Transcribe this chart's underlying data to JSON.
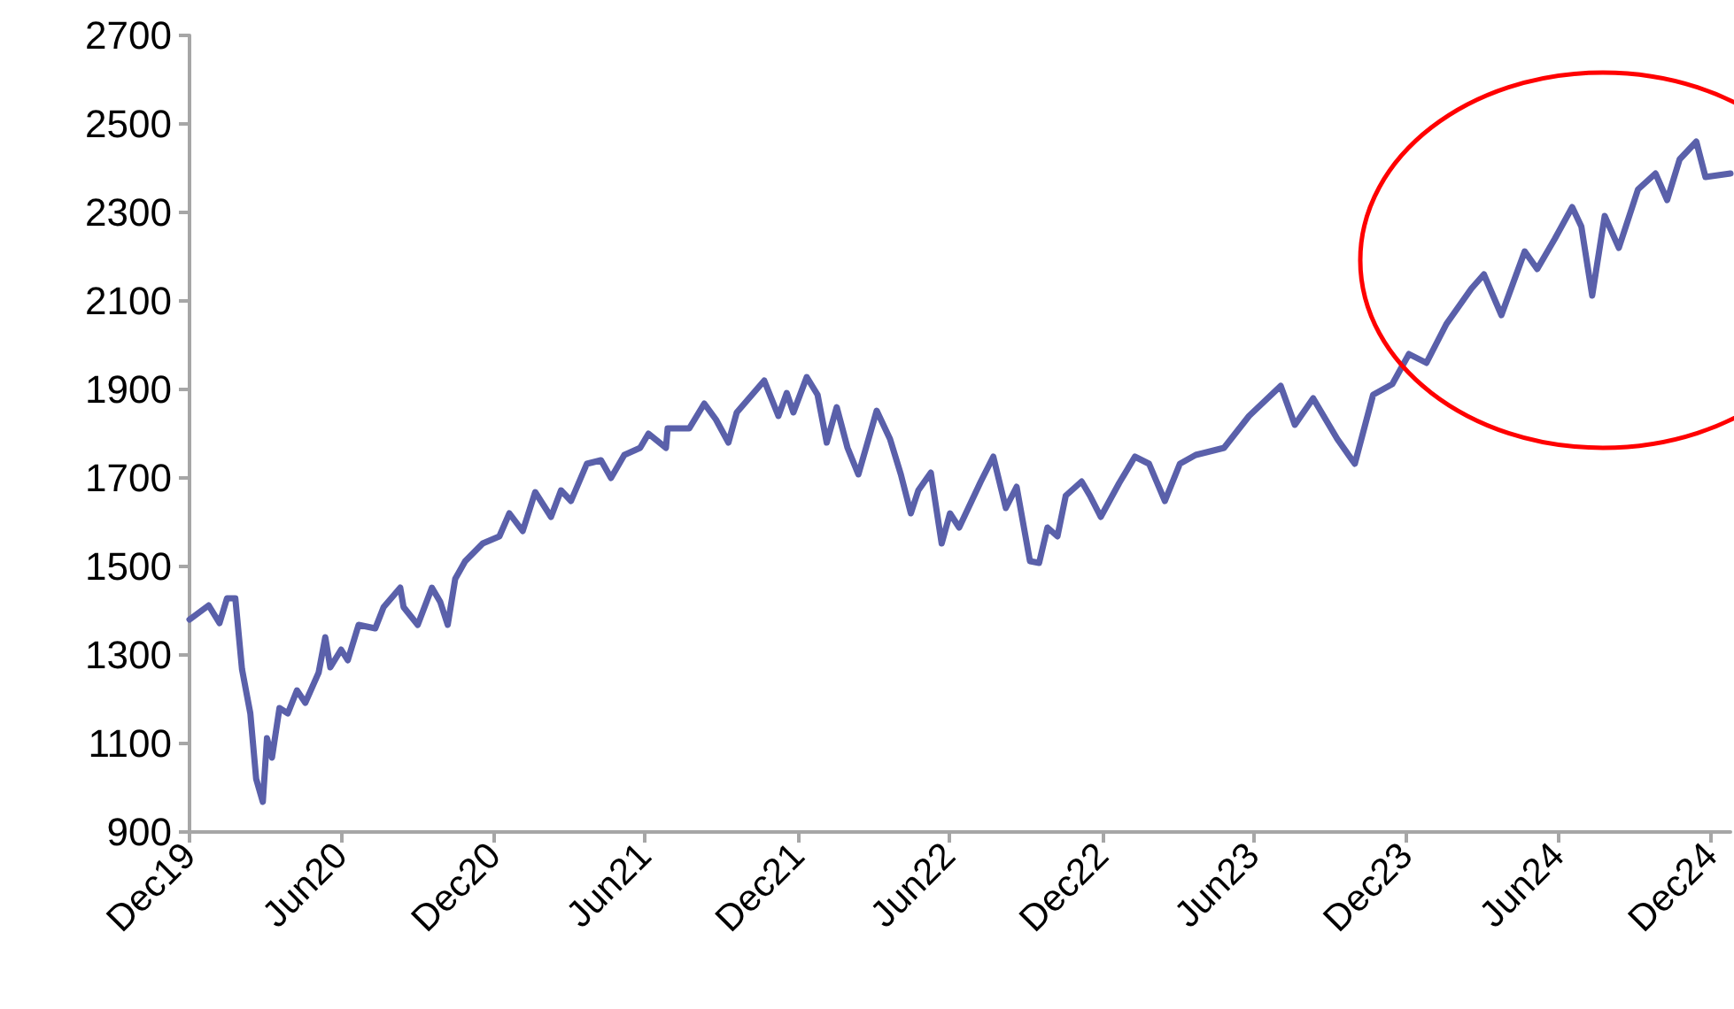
{
  "chart_data": {
    "type": "line",
    "x": [
      "2019-12-31",
      "2020-01-23",
      "2020-02-05",
      "2020-02-14",
      "2020-02-24",
      "2020-03-03",
      "2020-03-13",
      "2020-03-20",
      "2020-03-28",
      "2020-04-02",
      "2020-04-08",
      "2020-04-17",
      "2020-04-27",
      "2020-05-08",
      "2020-05-18",
      "2020-06-03",
      "2020-06-11",
      "2020-06-17",
      "2020-06-30",
      "2020-07-08",
      "2020-07-21",
      "2020-08-10",
      "2020-08-20",
      "2020-09-09",
      "2020-09-13",
      "2020-09-30",
      "2020-10-17",
      "2020-10-27",
      "2020-11-05",
      "2020-11-14",
      "2020-11-26",
      "2020-12-17",
      "2021-01-06",
      "2021-01-18",
      "2021-02-03",
      "2021-02-18",
      "2021-03-09",
      "2021-03-21",
      "2021-04-02",
      "2021-04-21",
      "2021-05-08",
      "2021-05-20",
      "2021-06-05",
      "2021-06-24",
      "2021-07-04",
      "2021-07-25",
      "2021-07-27",
      "2021-08-22",
      "2021-09-09",
      "2021-09-23",
      "2021-10-08",
      "2021-10-18",
      "2021-11-20",
      "2021-12-07",
      "2021-12-17",
      "2021-12-25",
      "2022-01-10",
      "2022-01-23",
      "2022-02-03",
      "2022-02-15",
      "2022-02-28",
      "2022-03-13",
      "2022-04-04",
      "2022-04-20",
      "2022-05-03",
      "2022-05-15",
      "2022-05-24",
      "2022-06-08",
      "2022-06-21",
      "2022-07-01",
      "2022-07-12",
      "2022-07-27",
      "2022-08-07",
      "2022-08-22",
      "2022-09-06",
      "2022-09-19",
      "2022-10-05",
      "2022-10-16",
      "2022-10-26",
      "2022-11-07",
      "2022-11-17",
      "2022-12-06",
      "2022-12-16",
      "2022-12-29",
      "2023-01-20",
      "2023-02-08",
      "2023-02-25",
      "2023-03-06",
      "2023-03-16",
      "2023-04-03",
      "2023-04-22",
      "2023-05-26",
      "2023-06-25",
      "2023-08-02",
      "2023-08-19",
      "2023-09-10",
      "2023-10-09",
      "2023-10-30",
      "2023-11-21",
      "2023-12-14",
      "2024-01-03",
      "2024-01-24",
      "2024-02-17",
      "2024-03-18",
      "2024-04-02",
      "2024-04-23",
      "2024-05-21",
      "2024-06-05",
      "2024-06-26",
      "2024-07-17",
      "2024-07-28",
      "2024-08-10",
      "2024-08-25",
      "2024-09-11",
      "2024-10-04",
      "2024-10-25",
      "2024-11-08",
      "2024-11-23",
      "2024-12-13",
      "2024-12-24",
      "2025-01-23"
    ],
    "series": [
      {
        "color": "#5a60aa",
        "values": [
          1380,
          1412,
          1372,
          1428,
          1428,
          1268,
          1168,
          1020,
          968,
          1112,
          1068,
          1180,
          1168,
          1220,
          1192,
          1260,
          1340,
          1272,
          1312,
          1288,
          1368,
          1360,
          1408,
          1452,
          1408,
          1368,
          1452,
          1420,
          1368,
          1472,
          1512,
          1552,
          1568,
          1620,
          1580,
          1668,
          1612,
          1672,
          1648,
          1732,
          1740,
          1700,
          1752,
          1768,
          1800,
          1768,
          1812,
          1812,
          1868,
          1832,
          1780,
          1848,
          1920,
          1840,
          1892,
          1848,
          1928,
          1888,
          1780,
          1860,
          1768,
          1708,
          1852,
          1788,
          1708,
          1620,
          1672,
          1712,
          1552,
          1620,
          1588,
          1648,
          1692,
          1748,
          1632,
          1680,
          1512,
          1508,
          1588,
          1568,
          1660,
          1692,
          1660,
          1612,
          1688,
          1748,
          1732,
          1692,
          1648,
          1732,
          1752,
          1768,
          1840,
          1908,
          1820,
          1880,
          1788,
          1732,
          1888,
          1912,
          1980,
          1960,
          2048,
          2128,
          2160,
          2068,
          2212,
          2172,
          2240,
          2312,
          2268,
          2112,
          2292,
          2220,
          2352,
          2388,
          2328,
          2420,
          2460,
          2380,
          2388
        ]
      }
    ],
    "xlim": [
      "2019-12-31",
      "2025-01-23"
    ],
    "xticks": [
      {
        "value": "2019-12-31",
        "label": "Dec19"
      },
      {
        "value": "2020-06-30",
        "label": "Jun20"
      },
      {
        "value": "2020-12-31",
        "label": "Dec20"
      },
      {
        "value": "2021-06-30",
        "label": "Jun21"
      },
      {
        "value": "2021-12-31",
        "label": "Dec21"
      },
      {
        "value": "2022-06-30",
        "label": "Jun22"
      },
      {
        "value": "2022-12-31",
        "label": "Dec22"
      },
      {
        "value": "2023-06-30",
        "label": "Jun23"
      },
      {
        "value": "2023-12-31",
        "label": "Dec23"
      },
      {
        "value": "2024-06-30",
        "label": "Jun24"
      },
      {
        "value": "2024-12-31",
        "label": "Dec24"
      }
    ],
    "ylim": [
      900,
      2700
    ],
    "yticks": [
      900,
      1100,
      1300,
      1500,
      1700,
      1900,
      2100,
      2300,
      2500,
      2700
    ],
    "grid": false,
    "marker": "none",
    "line_style": "solid"
  }
}
